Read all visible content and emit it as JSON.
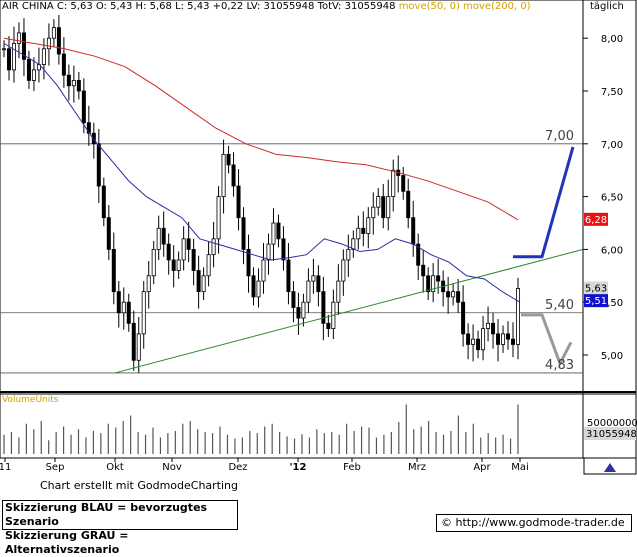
{
  "header": {
    "symbol": "AIR CHINA",
    "quote": "C: 5,63 O: 5,43 H: 5,68 L: 5,43 +0,22 LV: 31055948 TotV: 31055948",
    "ma_label": "move(50, 0) move(200, 0)",
    "period": "täglich"
  },
  "colors": {
    "candles": "#000000",
    "ma50": "#2a2aa8",
    "ma200": "#cc2a2a",
    "trendline": "#2a8a2a",
    "scenario_blue": "#2233bb",
    "scenario_grey": "#999999",
    "badge_red": "#ee1111",
    "badge_blue": "#1111cc",
    "badge_grey": "#d8d8d8"
  },
  "chart_data": {
    "type": "candlestick",
    "y_axis": {
      "ticks": [
        "8,00",
        "7,50",
        "7,00",
        "6,50",
        "6,00",
        "5,50",
        "5,00"
      ],
      "ylim": [
        4.8,
        8.2
      ]
    },
    "x_axis": {
      "ticks": [
        "11",
        "Sep",
        "Okt",
        "Nov",
        "Dez",
        "'12",
        "Feb",
        "Mrz",
        "Apr",
        "Mai"
      ]
    },
    "levels": [
      {
        "label": "7,00",
        "value": 7.0
      },
      {
        "label": "5,40",
        "value": 5.4
      },
      {
        "label": "4,83",
        "value": 4.83
      }
    ],
    "badges": [
      {
        "label": "6,28",
        "value": 6.28,
        "kind": "red"
      },
      {
        "label": "5,63",
        "value": 5.63,
        "kind": "grey"
      },
      {
        "label": "5,51",
        "value": 5.51,
        "kind": "blue"
      }
    ],
    "close_series": [
      7.9,
      7.7,
      7.95,
      8.05,
      7.8,
      7.6,
      7.7,
      7.75,
      7.9,
      8.0,
      8.1,
      7.85,
      7.65,
      7.55,
      7.6,
      7.5,
      7.2,
      7.1,
      7.0,
      6.6,
      6.3,
      6.0,
      5.6,
      5.4,
      5.5,
      5.3,
      4.95,
      5.2,
      5.6,
      5.75,
      6.0,
      6.2,
      6.05,
      5.9,
      5.8,
      5.9,
      6.1,
      6.0,
      5.8,
      5.6,
      5.75,
      5.95,
      6.1,
      6.5,
      6.9,
      6.8,
      6.6,
      6.3,
      6.0,
      5.75,
      5.55,
      5.7,
      5.9,
      6.05,
      6.25,
      6.1,
      5.9,
      5.6,
      5.45,
      5.35,
      5.5,
      5.7,
      5.75,
      5.6,
      5.3,
      5.25,
      5.5,
      5.7,
      5.9,
      6.0,
      6.1,
      6.2,
      6.15,
      6.3,
      6.4,
      6.5,
      6.3,
      6.5,
      6.75,
      6.7,
      6.55,
      6.3,
      6.05,
      5.85,
      5.75,
      5.6,
      5.75,
      5.7,
      5.6,
      5.55,
      5.6,
      5.5,
      5.2,
      5.1,
      5.15,
      5.05,
      5.25,
      5.3,
      5.2,
      5.1,
      5.2,
      5.15,
      5.1,
      5.63
    ],
    "ma50": {
      "name": "move(50, 0)",
      "values": [
        7.95,
        7.85,
        7.75,
        7.55,
        7.3,
        7.05,
        6.85,
        6.65,
        6.5,
        6.4,
        6.3,
        6.1,
        6.05,
        6.0,
        5.95,
        5.9,
        5.92,
        5.95,
        6.1,
        6.05,
        5.98,
        6.0,
        6.1,
        6.05,
        5.95,
        5.88,
        5.75,
        5.72,
        5.6,
        5.5
      ]
    },
    "ma200": {
      "name": "move(200, 0)",
      "values": [
        8.0,
        7.95,
        7.9,
        7.83,
        7.73,
        7.55,
        7.35,
        7.15,
        7.0,
        6.9,
        6.87,
        6.83,
        6.8,
        6.73,
        6.65,
        6.55,
        6.45,
        6.28
      ]
    },
    "volume": {
      "label": "VolumeUnits",
      "ticks": [
        "50000000"
      ],
      "last_label": "31055948",
      "values": [
        35,
        40,
        30,
        55,
        45,
        60,
        25,
        40,
        50,
        35,
        45,
        30,
        42,
        38,
        55,
        48,
        60,
        70,
        40,
        35,
        48,
        30,
        38,
        42,
        55,
        60,
        45,
        40,
        38,
        50,
        35,
        28,
        30,
        42,
        38,
        50,
        55,
        40,
        32,
        28,
        36,
        30,
        45,
        38,
        40,
        35,
        55,
        42,
        50,
        48,
        30,
        35,
        40,
        58,
        90,
        45,
        50,
        60,
        40,
        35,
        42,
        70,
        40,
        55,
        30,
        38,
        30,
        35,
        28,
        90
      ]
    }
  },
  "footer": {
    "credit": "Chart erstellt mit GodmodeCharting",
    "legend_blue": "Skizzierung BLAU = bevorzugtes Szenario",
    "legend_grey": "Skizzierung GRAU = Alternativszenario",
    "url": "© http://www.godmode-trader.de"
  }
}
